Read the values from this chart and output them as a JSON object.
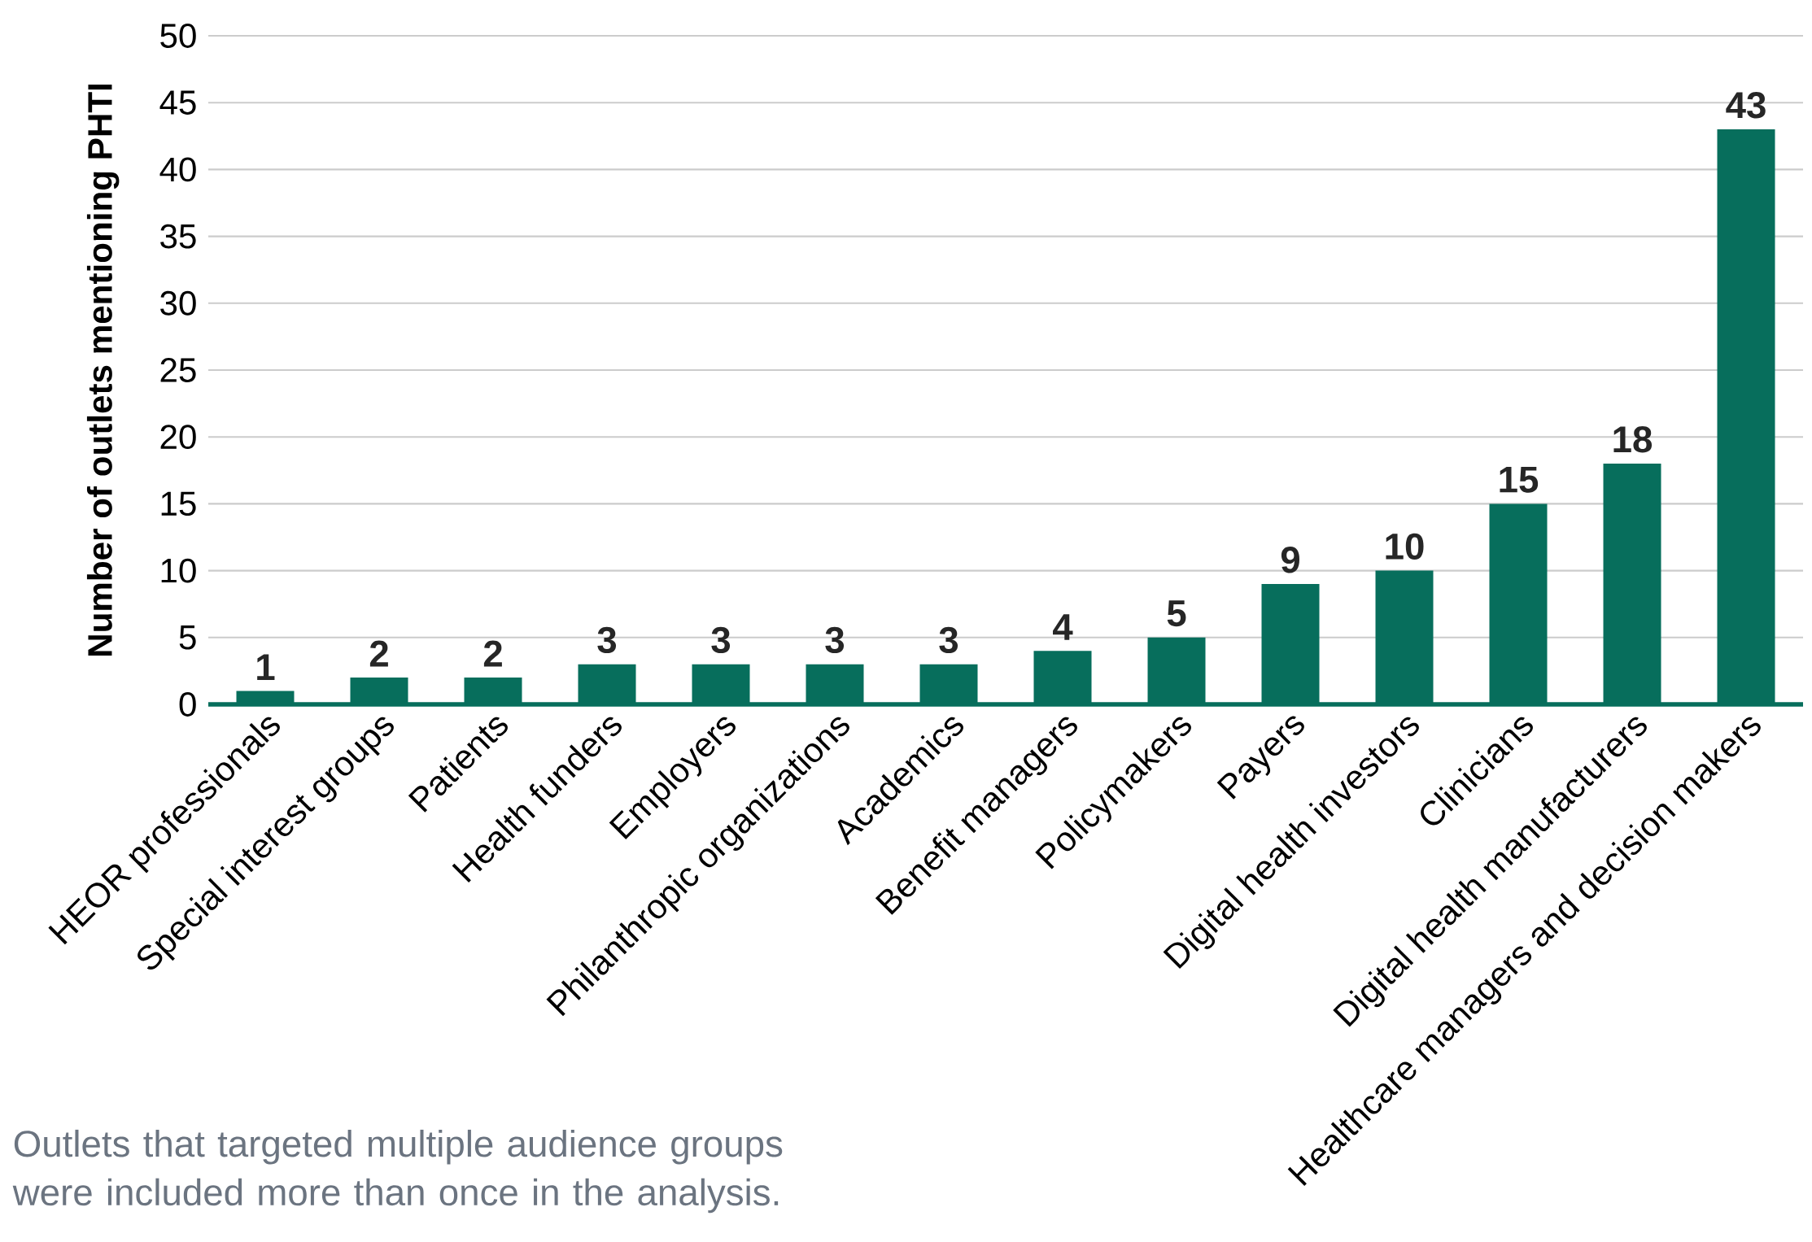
{
  "chart_data": {
    "type": "bar",
    "ylabel": "Number of outlets mentioning PHTI",
    "categories": [
      "HEOR professionals",
      "Special interest groups",
      "Patients",
      "Health funders",
      "Employers",
      "Philanthropic organizations",
      "Academics",
      "Benefit managers",
      "Policymakers",
      "Payers",
      "Digital health investors",
      "Clinicians",
      "Digital health manufacturers",
      "Healthcare managers and decision makers"
    ],
    "values": [
      1,
      2,
      2,
      3,
      3,
      3,
      3,
      4,
      5,
      9,
      10,
      15,
      18,
      43
    ],
    "color": "#076e5c",
    "data_labels": true,
    "grid": "y",
    "ylim": [
      0,
      50
    ],
    "yticks": [
      0,
      5,
      10,
      15,
      20,
      25,
      30,
      35,
      40,
      45,
      50
    ],
    "annotations": [
      "Outlets that targeted multiple audience groups were included more than once in the analysis."
    ]
  }
}
